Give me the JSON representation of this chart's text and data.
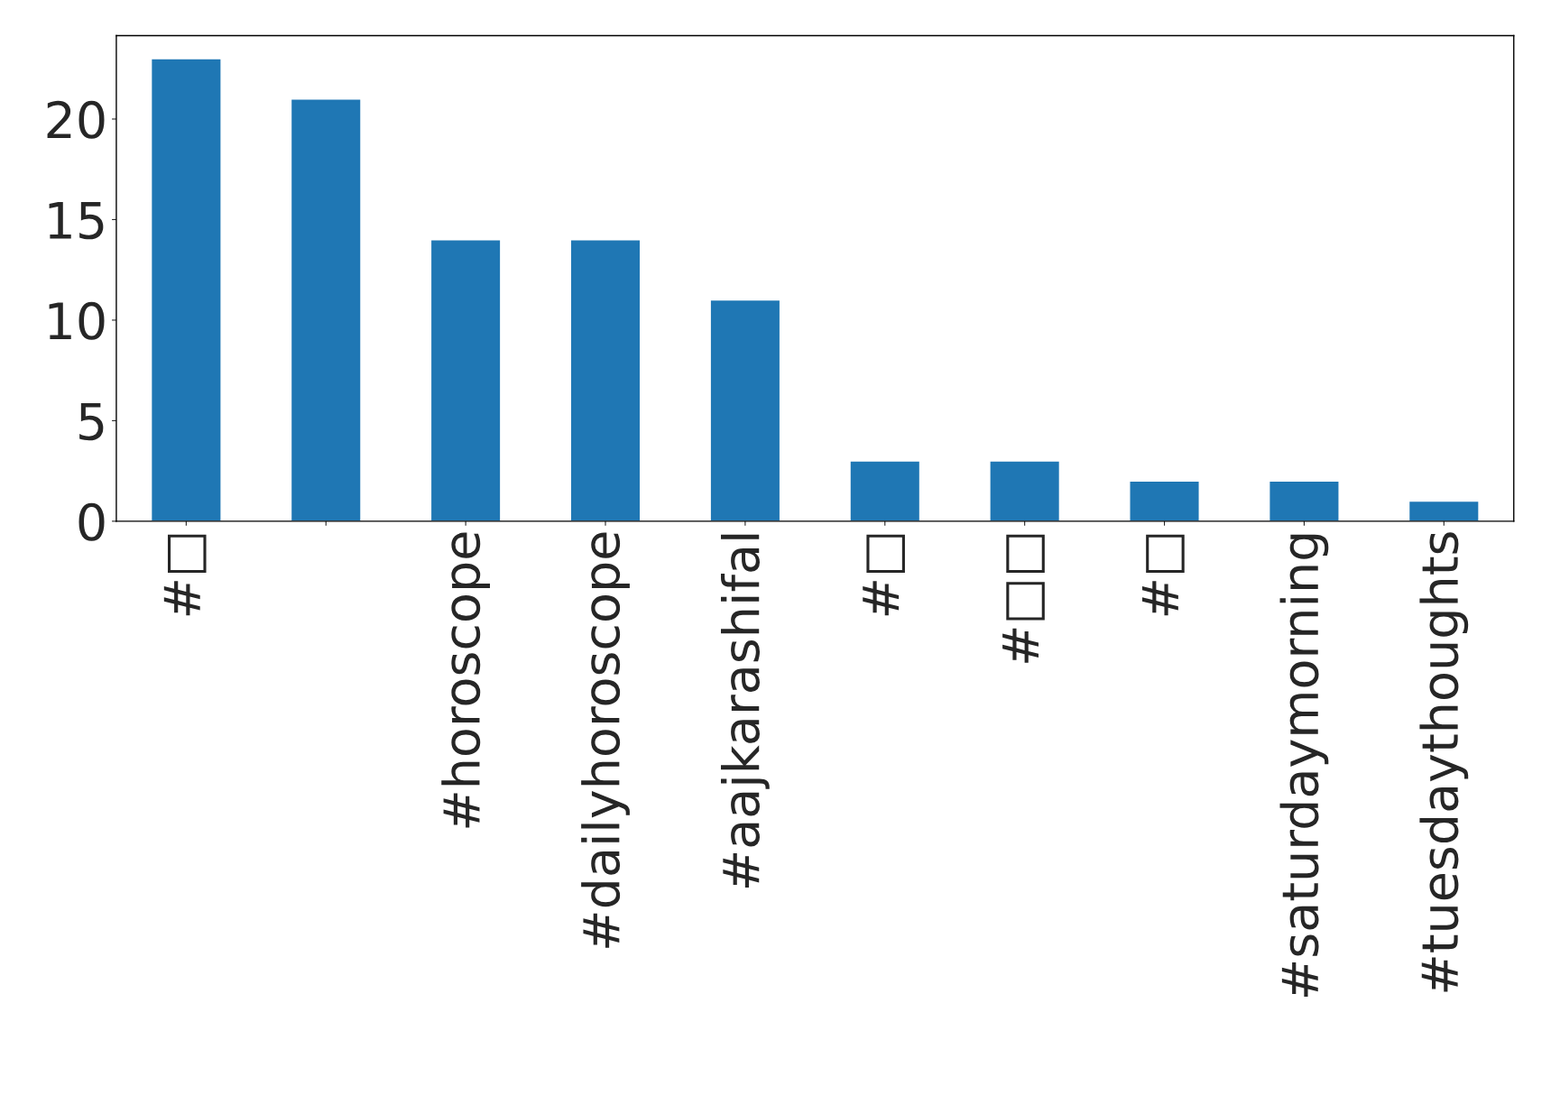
{
  "chart_data": {
    "type": "bar",
    "categories": [
      "#□",
      null,
      "#horoscope",
      "#dailyhoroscope",
      "#aajkarashifal",
      "#□",
      "#□□",
      "#□",
      "#saturdaymorning",
      "#tuesdaythoughts"
    ],
    "values": [
      23,
      21,
      14,
      14,
      11,
      3,
      3,
      2,
      2,
      1
    ],
    "color": "#1f77b4",
    "ylim": [
      0,
      24.15
    ],
    "yticks": [
      0,
      5,
      10,
      15,
      20
    ],
    "grid": false,
    "legend": false
  }
}
